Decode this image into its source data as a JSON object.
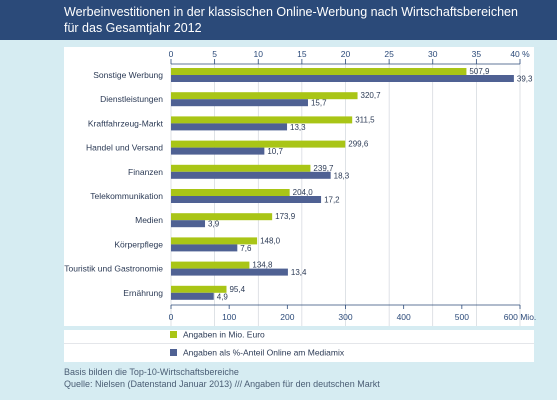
{
  "title": {
    "line1": "Werbeinvestitionen in der klassischen Online-Werbung nach Wirtschaftsbereichen",
    "line2": "für das Gesamtjahr 2012"
  },
  "chart_data": {
    "type": "bar",
    "orientation": "horizontal",
    "categories": [
      "Sonstige Werbung",
      "Dienstleistungen",
      "Kraftfahrzeug-Markt",
      "Handel und Versand",
      "Finanzen",
      "Telekommunikation",
      "Medien",
      "Körperpflege",
      "Touristik und Gastronomie",
      "Ernährung"
    ],
    "series": [
      {
        "name": "Angaben in Mio. Euro",
        "color": "#a9c516",
        "axis": "bottom",
        "values": [
          507.9,
          320.7,
          311.5,
          299.6,
          239.7,
          204.0,
          173.9,
          148.0,
          134.8,
          95.4
        ],
        "labels": [
          "507,9",
          "320,7",
          "311,5",
          "299,6",
          "239,7",
          "204,0",
          "173,9",
          "148,0",
          "134,8",
          "95,4"
        ]
      },
      {
        "name": "Angaben als %-Anteil Online am Mediamix",
        "color": "#4f6193",
        "axis": "top",
        "values": [
          39.3,
          15.7,
          13.3,
          10.7,
          18.3,
          17.2,
          3.9,
          7.6,
          13.4,
          4.9
        ],
        "labels": [
          "39,3",
          "15,7",
          "13,3",
          "10,7",
          "18,3",
          "17,2",
          "3,9",
          "7,6",
          "13,4",
          "4,9"
        ]
      }
    ],
    "top_axis": {
      "range": [
        0,
        40
      ],
      "ticks": [
        "0",
        "5",
        "10",
        "15",
        "20",
        "25",
        "30",
        "35",
        "40 %"
      ]
    },
    "bottom_axis": {
      "range": [
        0,
        600
      ],
      "ticks": [
        "0",
        "100",
        "200",
        "300",
        "400",
        "500",
        "600 Mio."
      ]
    },
    "grid": true,
    "legend_placement": "bottom"
  },
  "footer": {
    "note": "Basis bilden die Top-10-Wirtschaftsbereiche",
    "source": "Quelle: Nielsen (Datenstand Januar 2013) /// Angaben für den deutschen Markt"
  }
}
